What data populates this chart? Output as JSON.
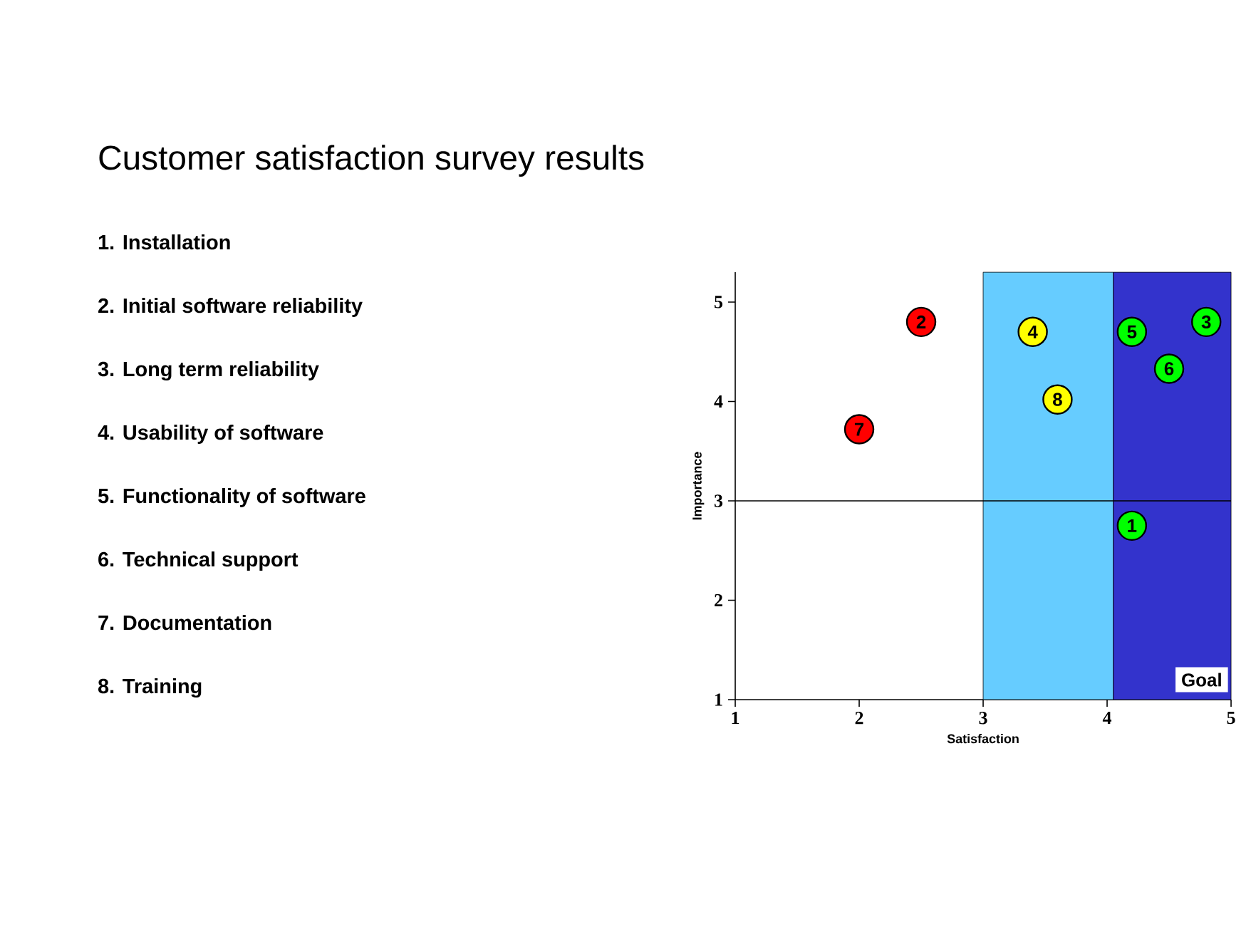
{
  "chart_data": {
    "type": "scatter",
    "title": "Customer satisfaction survey results",
    "xlabel": "Satisfaction",
    "ylabel": "Importance",
    "xlim": [
      1,
      5
    ],
    "ylim": [
      1,
      5.3
    ],
    "xticks": [
      1,
      2,
      3,
      4,
      5
    ],
    "yticks": [
      1,
      2,
      3,
      4,
      5
    ],
    "grid": false,
    "marker": "circle",
    "series": [
      {
        "color": "#ff0000",
        "x": [
          2.5,
          2.0
        ],
        "values": [
          4.8,
          3.72
        ]
      },
      {
        "color": "#ffff00",
        "x": [
          3.4,
          3.6
        ],
        "values": [
          4.7,
          4.02
        ]
      },
      {
        "color": "#00ff00",
        "x": [
          4.2,
          4.8,
          4.2,
          4.5
        ],
        "values": [
          2.75,
          4.8,
          4.7,
          4.33
        ]
      }
    ],
    "bands": [
      {
        "axis": "x",
        "from": 3,
        "to": 4.05,
        "color": "#66ccff"
      },
      {
        "axis": "x",
        "from": 4.05,
        "to": 5,
        "color": "#3333cc",
        "label": "Goal"
      }
    ],
    "ref_lines": [
      {
        "axis": "y",
        "value": 3
      }
    ],
    "annotations": [
      "1.  Installation",
      "2.  Initial software reliability",
      "3.  Long term reliability",
      "4.  Usability of software",
      "5.  Functionality of software",
      "6.  Technical support",
      "7.  Documentation",
      "8.  Training",
      {
        "text": "1",
        "x": 4.2,
        "y": 2.75
      },
      {
        "text": "2",
        "x": 2.5,
        "y": 4.8
      },
      {
        "text": "3",
        "x": 4.8,
        "y": 4.8
      },
      {
        "text": "4",
        "x": 3.4,
        "y": 4.7
      },
      {
        "text": "5",
        "x": 4.2,
        "y": 4.7
      },
      {
        "text": "6",
        "x": 4.5,
        "y": 4.33
      },
      {
        "text": "7",
        "x": 2.0,
        "y": 3.72
      },
      {
        "text": "8",
        "x": 3.6,
        "y": 4.02
      }
    ]
  }
}
